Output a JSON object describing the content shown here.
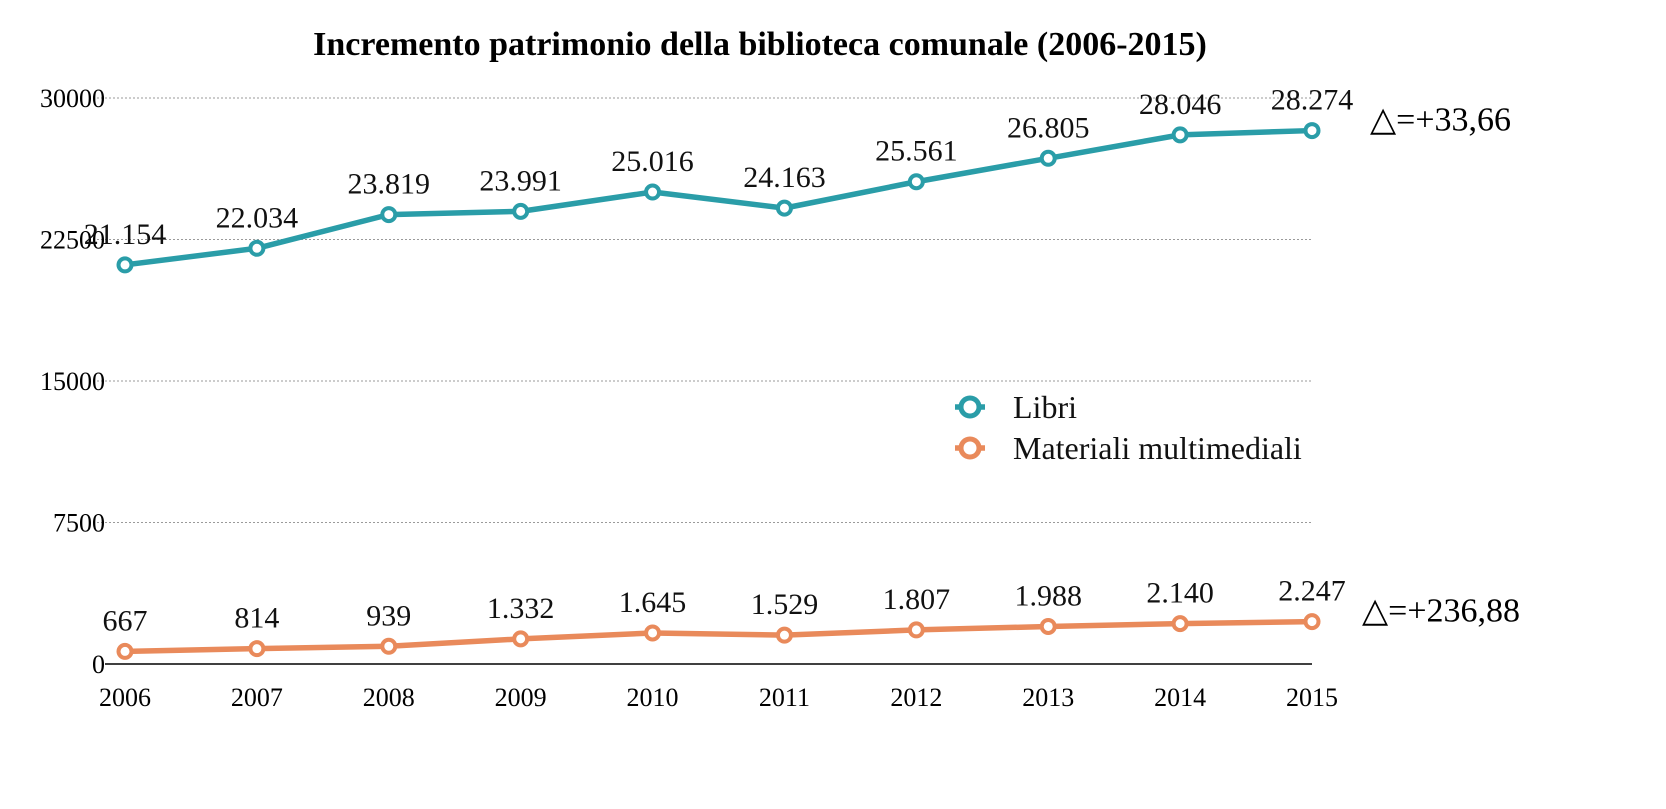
{
  "chart_data": {
    "type": "line",
    "title": "Incremento patrimonio della biblioteca comunale (2006-2015)",
    "x": [
      "2006",
      "2007",
      "2008",
      "2009",
      "2010",
      "2011",
      "2012",
      "2013",
      "2014",
      "2015"
    ],
    "ylim": [
      0,
      30000
    ],
    "yticks": [
      "0",
      "7500",
      "15000",
      "22500",
      "30000"
    ],
    "ytick_values": [
      0,
      7500,
      15000,
      22500,
      30000
    ],
    "grid": true,
    "legend_position": "right-middle",
    "series": [
      {
        "name": "Libri",
        "color": "#2A9DA8",
        "values": [
          21154,
          22034,
          23819,
          23991,
          25016,
          24163,
          25561,
          26805,
          28046,
          28274
        ],
        "labels": [
          "21.154",
          "22.034",
          "23.819",
          "23.991",
          "25.016",
          "24.163",
          "25.561",
          "26.805",
          "28.046",
          "28.274"
        ],
        "delta": "△=+33,66"
      },
      {
        "name": "Materiali multimediali",
        "color": "#E98A5B",
        "values": [
          667,
          814,
          939,
          1332,
          1645,
          1529,
          1807,
          1988,
          2140,
          2247
        ],
        "labels": [
          "667",
          "814",
          "939",
          "1.332",
          "1.645",
          "1.529",
          "1.807",
          "1.988",
          "2.140",
          "2.247"
        ],
        "delta": "△=+236,88"
      }
    ]
  }
}
